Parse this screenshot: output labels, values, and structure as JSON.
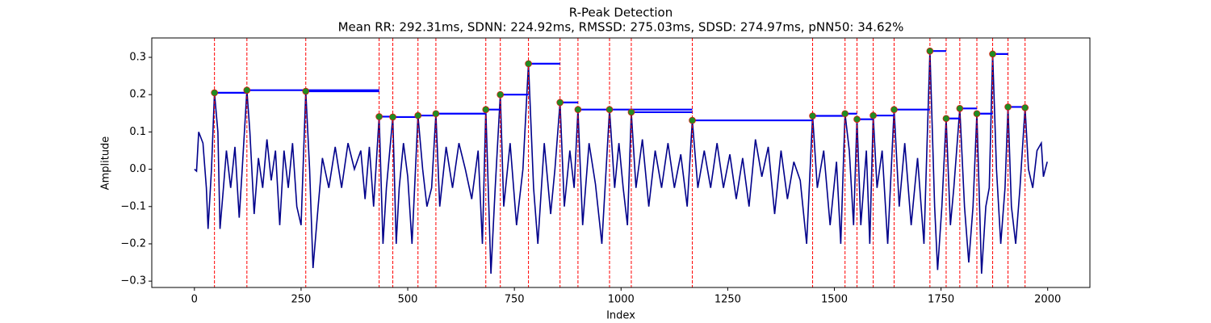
{
  "chart_data": {
    "type": "line",
    "title": "R-Peak Detection",
    "subtitle": "Mean RR: 292.31ms, SDNN: 224.92ms, RMSSD: 275.03ms, SDSD: 274.97ms, pNN50: 34.62%",
    "xlabel": "Index",
    "ylabel": "Amplitude",
    "color": "#00008b",
    "x": [
      0,
      5,
      10,
      20,
      28,
      32,
      40,
      47,
      55,
      60,
      68,
      75,
      85,
      95,
      105,
      112,
      123,
      130,
      140,
      150,
      160,
      170,
      180,
      190,
      200,
      210,
      220,
      230,
      240,
      250,
      261,
      270,
      278,
      290,
      300,
      315,
      330,
      345,
      360,
      375,
      390,
      400,
      410,
      420,
      433,
      442,
      450,
      465,
      473,
      480,
      490,
      500,
      510,
      524,
      535,
      545,
      556,
      566,
      575,
      590,
      605,
      620,
      635,
      650,
      665,
      675,
      683,
      695,
      705,
      717,
      725,
      740,
      755,
      770,
      783,
      795,
      805,
      820,
      835,
      845,
      857,
      867,
      880,
      890,
      899,
      910,
      925,
      940,
      955,
      973,
      985,
      995,
      1005,
      1015,
      1024,
      1035,
      1050,
      1065,
      1080,
      1095,
      1110,
      1125,
      1140,
      1155,
      1167,
      1180,
      1195,
      1210,
      1225,
      1240,
      1255,
      1270,
      1285,
      1300,
      1315,
      1330,
      1345,
      1360,
      1375,
      1390,
      1405,
      1420,
      1435,
      1449,
      1460,
      1475,
      1490,
      1505,
      1515,
      1525,
      1535,
      1545,
      1553,
      1562,
      1575,
      1583,
      1591,
      1600,
      1612,
      1625,
      1640,
      1652,
      1665,
      1680,
      1695,
      1710,
      1724,
      1735,
      1742,
      1752,
      1762,
      1772,
      1780,
      1794,
      1805,
      1815,
      1825,
      1834,
      1845,
      1855,
      1863,
      1871,
      1880,
      1890,
      1900,
      1907,
      1915,
      1925,
      1935,
      1947,
      1955,
      1965,
      1975,
      1985,
      1990,
      1999
    ],
    "values": [
      0,
      -0.005,
      0.1,
      0.07,
      -0.05,
      -0.16,
      0.0,
      0.205,
      0.1,
      -0.16,
      -0.05,
      0.05,
      -0.05,
      0.06,
      -0.13,
      0.0,
      0.212,
      0.1,
      -0.12,
      0.03,
      -0.05,
      0.08,
      -0.03,
      0.05,
      -0.15,
      0.05,
      -0.05,
      0.07,
      -0.1,
      -0.15,
      0.209,
      0.0,
      -0.265,
      -0.1,
      0.03,
      -0.05,
      0.06,
      -0.05,
      0.07,
      0.0,
      0.05,
      -0.08,
      0.06,
      -0.1,
      0.141,
      -0.2,
      -0.05,
      0.14,
      -0.2,
      -0.05,
      0.07,
      -0.02,
      -0.2,
      0.144,
      0.0,
      -0.1,
      -0.05,
      0.149,
      -0.1,
      0.06,
      -0.05,
      0.07,
      0.0,
      -0.08,
      0.05,
      -0.2,
      0.16,
      -0.28,
      -0.05,
      0.2,
      -0.1,
      0.07,
      -0.15,
      0.0,
      0.283,
      -0.05,
      -0.2,
      0.07,
      -0.12,
      0.0,
      0.179,
      -0.1,
      0.05,
      -0.05,
      0.16,
      -0.15,
      0.07,
      -0.04,
      -0.2,
      0.16,
      -0.05,
      0.07,
      -0.05,
      -0.15,
      0.153,
      -0.05,
      0.08,
      -0.1,
      0.05,
      -0.05,
      0.07,
      -0.05,
      0.04,
      -0.1,
      0.131,
      -0.05,
      0.05,
      -0.05,
      0.07,
      -0.05,
      0.04,
      -0.08,
      0.03,
      -0.1,
      0.08,
      -0.02,
      0.06,
      -0.12,
      0.05,
      -0.08,
      0.02,
      -0.03,
      -0.2,
      0.143,
      -0.05,
      0.05,
      -0.15,
      0.02,
      -0.2,
      0.149,
      0.05,
      -0.15,
      0.134,
      -0.15,
      0.05,
      -0.2,
      0.144,
      -0.05,
      0.05,
      -0.2,
      0.16,
      -0.1,
      0.07,
      -0.15,
      0.03,
      -0.2,
      0.317,
      -0.1,
      -0.27,
      -0.1,
      0.136,
      -0.15,
      -0.05,
      0.163,
      -0.1,
      -0.25,
      -0.1,
      0.149,
      -0.28,
      -0.1,
      -0.05,
      0.309,
      0.0,
      -0.2,
      -0.05,
      0.167,
      -0.1,
      -0.2,
      -0.05,
      0.165,
      0.0,
      -0.05,
      0.05,
      0.07,
      -0.02,
      0.02
    ],
    "peaks": {
      "marker_color": "#228b22",
      "vline_color": "#ff0000",
      "hline_color": "#0000ff",
      "x": [
        47,
        123,
        261,
        433,
        465,
        524,
        566,
        683,
        717,
        783,
        857,
        899,
        973,
        1024,
        1167,
        1449,
        1525,
        1553,
        1591,
        1640,
        1724,
        1762,
        1794,
        1834,
        1871,
        1907,
        1947
      ],
      "values": [
        0.205,
        0.212,
        0.209,
        0.141,
        0.14,
        0.144,
        0.149,
        0.16,
        0.2,
        0.283,
        0.179,
        0.16,
        0.16,
        0.153,
        0.131,
        0.143,
        0.149,
        0.134,
        0.144,
        0.16,
        0.317,
        0.136,
        0.163,
        0.149,
        0.309,
        0.167,
        0.165
      ],
      "hline_end": [
        123,
        433,
        433,
        465,
        524,
        566,
        683,
        717,
        783,
        857,
        899,
        973,
        1167,
        1167,
        1449,
        1525,
        1553,
        1591,
        1640,
        1724,
        1762,
        1794,
        1834,
        1871,
        1907,
        1947,
        1952
      ]
    },
    "xlim": [
      -99.95,
      2098.95
    ],
    "ylim": [
      -0.317,
      0.352
    ],
    "xticks": [
      0,
      250,
      500,
      750,
      1000,
      1250,
      1500,
      1750,
      2000
    ],
    "yticks": [
      {
        "value": -0.3,
        "label": "−0.3"
      },
      {
        "value": -0.2,
        "label": "−0.2"
      },
      {
        "value": -0.1,
        "label": "−0.1"
      },
      {
        "value": 0,
        "label": "0.0"
      },
      0.1,
      0.2,
      0.3
    ]
  }
}
